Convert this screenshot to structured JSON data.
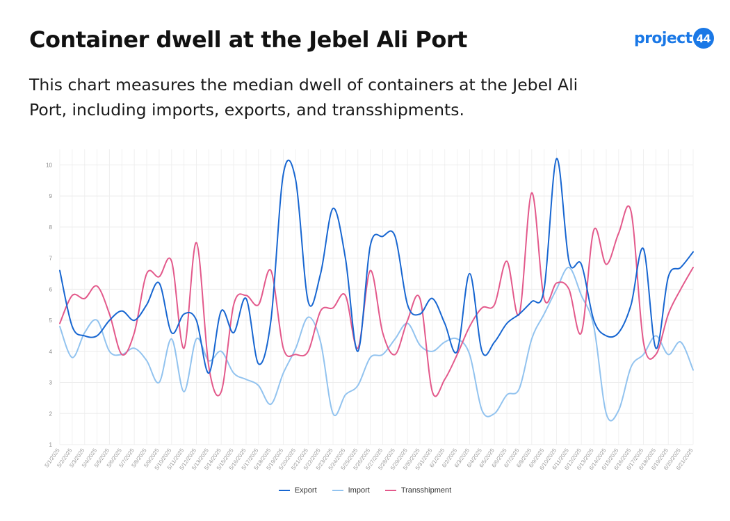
{
  "header": {
    "title": "Container dwell at the Jebel Ali Port",
    "subtitle": "This chart measures the median dwell of containers at the Jebel Ali Port, including imports, exports, and transshipments.",
    "logo_text": "project",
    "logo_badge": "44"
  },
  "chart_data": {
    "type": "line",
    "x": [
      "5/1/2025",
      "5/2/2025",
      "5/3/2025",
      "5/4/2025",
      "5/5/2025",
      "5/6/2025",
      "5/7/2025",
      "5/8/2025",
      "5/9/2025",
      "5/10/2025",
      "5/11/2025",
      "5/12/2025",
      "5/13/2025",
      "5/14/2025",
      "5/15/2025",
      "5/16/2025",
      "5/17/2025",
      "5/18/2025",
      "5/19/2025",
      "5/20/2025",
      "5/21/2025",
      "5/22/2025",
      "5/23/2025",
      "5/24/2025",
      "5/25/2025",
      "5/26/2025",
      "5/27/2025",
      "5/28/2025",
      "5/29/2025",
      "5/30/2025",
      "5/31/2025",
      "6/1/2025",
      "6/2/2025",
      "6/3/2025",
      "6/4/2025",
      "6/5/2025",
      "6/6/2025",
      "6/7/2025",
      "6/8/2025",
      "6/9/2025",
      "6/10/2025",
      "6/11/2025",
      "6/12/2025",
      "6/13/2025",
      "6/14/2025",
      "6/15/2025",
      "6/16/2025",
      "6/17/2025",
      "6/18/2025",
      "6/19/2025",
      "6/20/2025",
      "6/21/2025"
    ],
    "series": [
      {
        "name": "Export",
        "color": "#1766d1",
        "values": [
          6.6,
          4.8,
          4.5,
          4.5,
          5.0,
          5.3,
          5.0,
          5.5,
          6.2,
          4.6,
          5.2,
          5.0,
          3.3,
          5.3,
          4.6,
          5.7,
          3.6,
          5.0,
          9.7,
          9.5,
          5.6,
          6.5,
          8.6,
          7.0,
          4.0,
          7.4,
          7.7,
          7.7,
          5.5,
          5.2,
          5.7,
          4.9,
          4.0,
          6.5,
          4.0,
          4.3,
          4.9,
          5.2,
          5.6,
          6.0,
          10.2,
          6.9,
          6.8,
          5.0,
          4.5,
          4.6,
          5.5,
          7.3,
          4.1,
          6.4,
          6.7,
          7.2
        ]
      },
      {
        "name": "Import",
        "color": "#92c3ef",
        "values": [
          4.8,
          3.8,
          4.6,
          5.0,
          4.0,
          3.9,
          4.1,
          3.7,
          3.0,
          4.4,
          2.7,
          4.4,
          3.7,
          4.0,
          3.3,
          3.1,
          2.9,
          2.3,
          3.3,
          4.1,
          5.1,
          4.3,
          2.0,
          2.6,
          2.9,
          3.8,
          3.9,
          4.4,
          4.9,
          4.2,
          4.0,
          4.3,
          4.4,
          3.9,
          2.1,
          2.0,
          2.6,
          2.8,
          4.4,
          5.2,
          6.0,
          6.7,
          5.8,
          4.8,
          2.0,
          2.1,
          3.5,
          3.9,
          4.5,
          3.9,
          4.3,
          3.4
        ]
      },
      {
        "name": "Transshipment",
        "color": "#e3598b",
        "values": [
          4.9,
          5.8,
          5.7,
          6.1,
          5.2,
          3.9,
          4.6,
          6.5,
          6.4,
          6.9,
          4.1,
          7.5,
          3.5,
          2.7,
          5.5,
          5.8,
          5.5,
          6.6,
          4.1,
          3.9,
          4.0,
          5.3,
          5.4,
          5.8,
          4.1,
          6.6,
          4.6,
          3.9,
          5.0,
          5.7,
          2.7,
          3.1,
          3.9,
          4.8,
          5.4,
          5.5,
          6.9,
          5.2,
          9.1,
          5.7,
          6.2,
          6.0,
          4.6,
          7.9,
          6.8,
          7.8,
          8.5,
          4.3,
          3.9,
          5.2,
          6.0,
          6.7
        ]
      }
    ],
    "y_ticks": [
      1,
      2,
      3,
      4,
      5,
      6,
      7,
      8,
      9,
      10
    ],
    "ylim": [
      1,
      10.5
    ],
    "grid": true,
    "legend": "bottom-center"
  }
}
